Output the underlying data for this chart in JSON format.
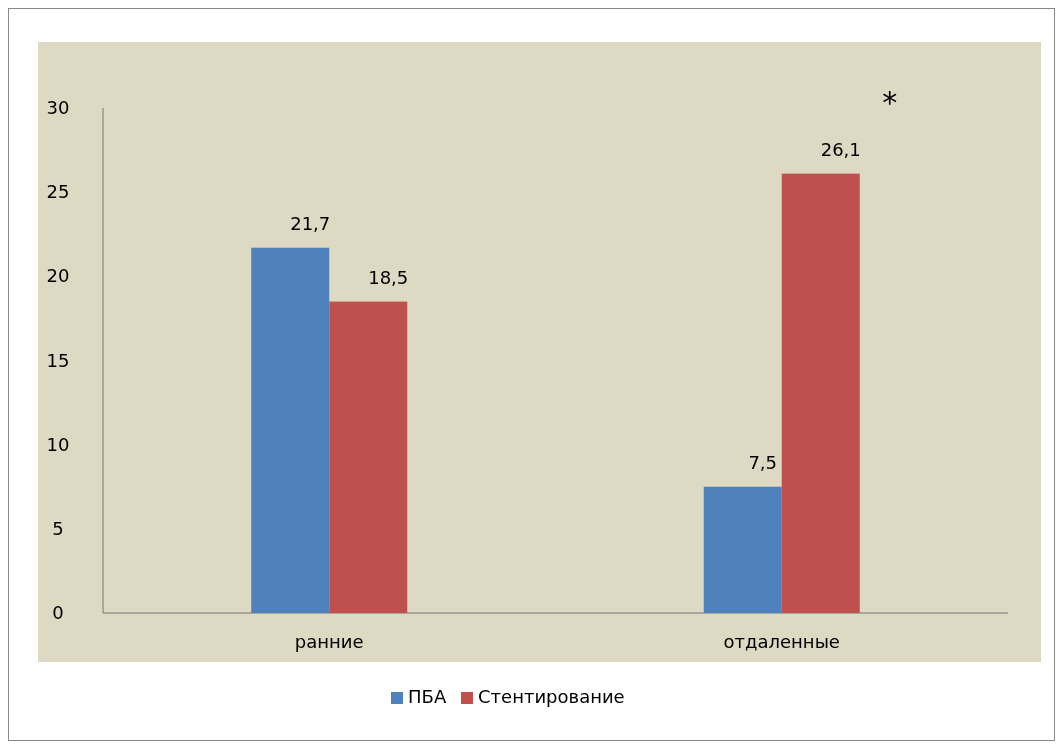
{
  "chart_data": {
    "type": "bar",
    "categories": [
      "ранние",
      "отдаленные"
    ],
    "series": [
      {
        "name": "ПБА",
        "color": "#4f81bd",
        "values": [
          21.7,
          7.5
        ],
        "value_labels": [
          "21,7",
          "7,5"
        ]
      },
      {
        "name": "Стентирование",
        "color": "#c0504d",
        "values": [
          18.5,
          26.1
        ],
        "value_labels": [
          "18,5",
          "26,1"
        ]
      }
    ],
    "ylim": [
      0,
      30
    ],
    "yticks": [
      0,
      5,
      10,
      15,
      20,
      25,
      30
    ],
    "grid": false,
    "legend": "bottom",
    "annotations": [
      "*"
    ]
  }
}
